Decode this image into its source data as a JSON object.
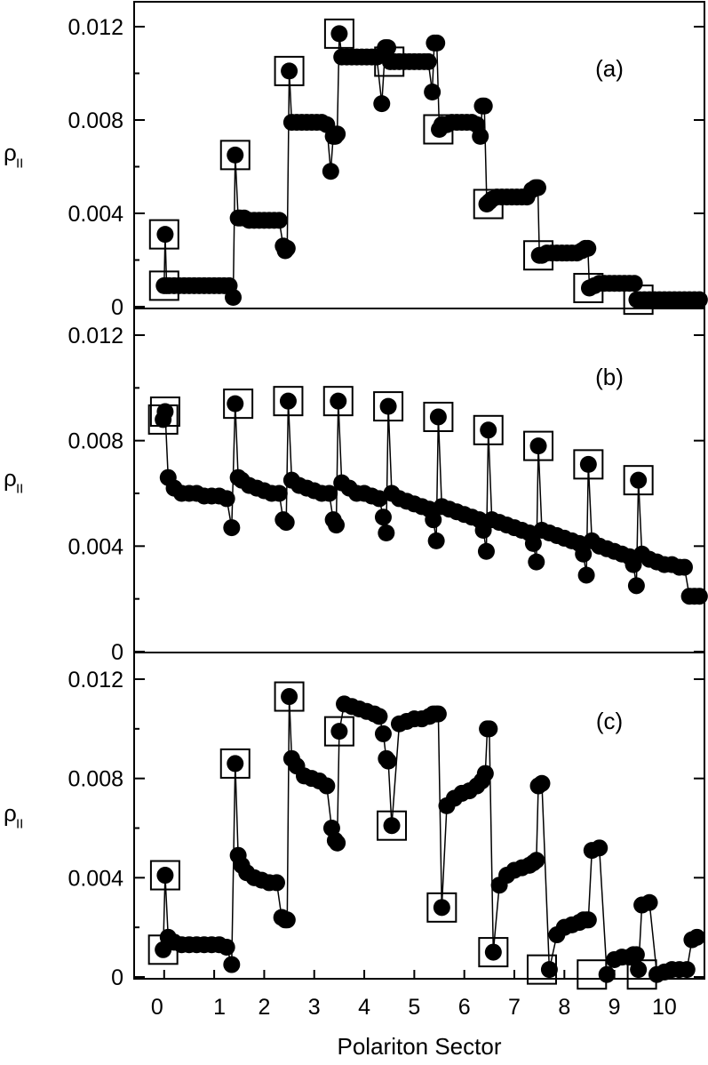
{
  "xlabel": "Polariton Sector",
  "x_tick_labels": [
    "0",
    "1",
    "2",
    "3",
    "4",
    "5",
    "6",
    "7",
    "8",
    "9",
    "10"
  ],
  "chart_data": [
    {
      "type": "line",
      "panel_label": "(a)",
      "ylabel": "ρ",
      "ylabel_subscript": "II",
      "ylim": [
        0,
        0.0125
      ],
      "xlim": [
        -0.6,
        10.8
      ],
      "y_tick_labels": [
        "0",
        "0.004",
        "0.008",
        "0.012"
      ],
      "y_ticks": [
        0,
        0.004,
        0.008,
        0.012
      ],
      "grid": false,
      "series": [
        {
          "x": [
            0.0,
            0.02,
            0.05,
            0.1,
            0.2,
            0.3,
            0.4,
            0.5,
            0.6,
            0.7,
            0.8,
            0.9,
            1.0,
            1.1,
            1.2,
            1.3,
            1.38,
            1.42,
            1.48,
            1.52,
            1.6,
            1.7,
            1.8,
            1.9,
            2.0,
            2.1,
            2.2,
            2.3,
            2.38,
            2.42,
            2.46,
            2.5,
            2.55,
            2.65,
            2.75,
            2.85,
            2.95,
            3.05,
            3.15,
            3.25,
            3.33,
            3.38,
            3.42,
            3.46,
            3.5,
            3.55,
            3.65,
            3.75,
            3.85,
            3.95,
            4.05,
            4.15,
            4.25,
            4.35,
            4.42,
            4.47,
            4.52,
            4.6,
            4.7,
            4.8,
            4.9,
            5.0,
            5.1,
            5.2,
            5.28,
            5.36,
            5.4,
            5.45,
            5.5,
            5.55,
            5.65,
            5.75,
            5.85,
            5.95,
            6.05,
            6.15,
            6.25,
            6.32,
            6.36,
            6.4,
            6.45,
            6.5,
            6.55,
            6.65,
            6.75,
            6.85,
            6.95,
            7.05,
            7.15,
            7.25,
            7.35,
            7.42,
            7.47,
            7.5,
            7.55,
            7.65,
            7.75,
            7.85,
            7.95,
            8.05,
            8.15,
            8.25,
            8.35,
            8.42,
            8.47,
            8.5,
            8.6,
            8.7,
            8.8,
            8.9,
            9.0,
            9.1,
            9.2,
            9.3,
            9.4,
            9.45,
            9.5,
            9.6,
            9.7,
            9.8,
            9.9,
            10.0,
            10.1,
            10.2,
            10.3,
            10.4,
            10.5,
            10.6,
            10.7
          ],
          "y": [
            0.0009,
            0.0031,
            0.0009,
            0.0009,
            0.0009,
            0.0009,
            0.0009,
            0.0009,
            0.0009,
            0.0009,
            0.0009,
            0.0009,
            0.0009,
            0.0009,
            0.0009,
            0.0009,
            0.0004,
            0.0065,
            0.0038,
            0.0038,
            0.0038,
            0.0037,
            0.0037,
            0.0037,
            0.0037,
            0.0037,
            0.0037,
            0.0037,
            0.0026,
            0.0024,
            0.0025,
            0.0101,
            0.0079,
            0.0079,
            0.0079,
            0.0079,
            0.0079,
            0.0079,
            0.0079,
            0.0078,
            0.0058,
            0.0073,
            0.0073,
            0.0074,
            0.0117,
            0.0107,
            0.0107,
            0.0107,
            0.0107,
            0.0107,
            0.0107,
            0.0107,
            0.0107,
            0.0087,
            0.0111,
            0.0111,
            0.0105,
            0.0105,
            0.0105,
            0.0105,
            0.0105,
            0.0105,
            0.0105,
            0.0105,
            0.0105,
            0.0092,
            0.0113,
            0.0113,
            0.0076,
            0.0078,
            0.0078,
            0.0079,
            0.0079,
            0.0079,
            0.0079,
            0.0079,
            0.0078,
            0.0073,
            0.0086,
            0.0086,
            0.0044,
            0.0045,
            0.0046,
            0.0047,
            0.0047,
            0.0047,
            0.0047,
            0.0047,
            0.0047,
            0.0047,
            0.005,
            0.0051,
            0.0051,
            0.0022,
            0.0022,
            0.0023,
            0.0023,
            0.0023,
            0.0023,
            0.0023,
            0.0023,
            0.0023,
            0.0024,
            0.0025,
            0.0025,
            0.0008,
            0.0009,
            0.001,
            0.001,
            0.001,
            0.001,
            0.001,
            0.001,
            0.001,
            0.001,
            0.0003,
            0.0003,
            0.0003,
            0.0003,
            0.0003,
            0.0003,
            0.0003,
            0.0003,
            0.0003,
            0.0003,
            0.0003,
            0.0003,
            0.0003,
            0.0003
          ]
        }
      ],
      "boxed_points": [
        [
          0.0,
          0.0031
        ],
        [
          0.0,
          0.0009
        ],
        [
          1.42,
          0.0065
        ],
        [
          2.5,
          0.0101
        ],
        [
          3.5,
          0.0117
        ],
        [
          4.5,
          0.0105
        ],
        [
          5.48,
          0.0076
        ],
        [
          6.48,
          0.0044
        ],
        [
          7.48,
          0.0022
        ],
        [
          8.48,
          0.0008
        ],
        [
          9.48,
          0.0003
        ]
      ]
    },
    {
      "type": "line",
      "panel_label": "(b)",
      "ylabel": "ρ",
      "ylabel_subscript": "II",
      "ylim": [
        0,
        0.0125
      ],
      "xlim": [
        -0.6,
        10.8
      ],
      "y_tick_labels": [
        "0",
        "0.004",
        "0.008",
        "0.012"
      ],
      "y_ticks": [
        0,
        0.004,
        0.008,
        0.012
      ],
      "grid": false,
      "series": [
        {
          "x": [
            -0.02,
            0.02,
            0.08,
            0.2,
            0.35,
            0.5,
            0.65,
            0.8,
            0.95,
            1.1,
            1.25,
            1.35,
            1.42,
            1.48,
            1.55,
            1.7,
            1.85,
            2.0,
            2.15,
            2.3,
            2.38,
            2.44,
            2.48,
            2.55,
            2.7,
            2.85,
            3.0,
            3.15,
            3.3,
            3.38,
            3.44,
            3.48,
            3.55,
            3.7,
            3.85,
            4.0,
            4.15,
            4.3,
            4.38,
            4.44,
            4.48,
            4.55,
            4.7,
            4.85,
            5.0,
            5.15,
            5.3,
            5.38,
            5.44,
            5.48,
            5.55,
            5.7,
            5.85,
            6.0,
            6.15,
            6.3,
            6.38,
            6.44,
            6.48,
            6.55,
            6.7,
            6.85,
            7.0,
            7.15,
            7.3,
            7.38,
            7.44,
            7.48,
            7.55,
            7.7,
            7.85,
            8.0,
            8.15,
            8.3,
            8.38,
            8.44,
            8.48,
            8.55,
            8.7,
            8.85,
            9.0,
            9.15,
            9.3,
            9.38,
            9.44,
            9.48,
            9.55,
            9.7,
            9.85,
            10.0,
            10.15,
            10.3,
            10.4,
            10.5,
            10.6,
            10.7
          ],
          "y": [
            0.0088,
            0.0091,
            0.0066,
            0.0062,
            0.006,
            0.006,
            0.006,
            0.0059,
            0.0059,
            0.0059,
            0.0058,
            0.0047,
            0.0094,
            0.0066,
            0.0065,
            0.0063,
            0.0062,
            0.0061,
            0.006,
            0.006,
            0.005,
            0.0049,
            0.0095,
            0.0065,
            0.0063,
            0.0062,
            0.0061,
            0.006,
            0.006,
            0.005,
            0.0048,
            0.0095,
            0.0064,
            0.0062,
            0.006,
            0.006,
            0.0059,
            0.0058,
            0.0051,
            0.0045,
            0.0093,
            0.006,
            0.0058,
            0.0057,
            0.0056,
            0.0055,
            0.0054,
            0.005,
            0.0042,
            0.0089,
            0.0055,
            0.0054,
            0.0053,
            0.0052,
            0.0051,
            0.005,
            0.0046,
            0.0038,
            0.0084,
            0.005,
            0.0049,
            0.0048,
            0.0047,
            0.0046,
            0.0045,
            0.0041,
            0.0034,
            0.0078,
            0.0046,
            0.0045,
            0.0044,
            0.0043,
            0.0042,
            0.0041,
            0.0037,
            0.0029,
            0.0071,
            0.0042,
            0.004,
            0.0039,
            0.0038,
            0.0037,
            0.0036,
            0.0033,
            0.0025,
            0.0065,
            0.0037,
            0.0035,
            0.0034,
            0.0033,
            0.0033,
            0.0032,
            0.0032,
            0.0021,
            0.0021,
            0.0021
          ]
        }
      ],
      "boxed_points": [
        [
          -0.02,
          0.0088
        ],
        [
          0.02,
          0.0091
        ],
        [
          1.48,
          0.0094
        ],
        [
          2.48,
          0.0095
        ],
        [
          3.48,
          0.0095
        ],
        [
          4.48,
          0.0093
        ],
        [
          5.48,
          0.0089
        ],
        [
          6.48,
          0.0084
        ],
        [
          7.48,
          0.0078
        ],
        [
          8.48,
          0.0071
        ],
        [
          9.48,
          0.0065
        ]
      ]
    },
    {
      "type": "line",
      "panel_label": "(c)",
      "ylabel": "ρ",
      "ylabel_subscript": "II",
      "ylim": [
        0,
        0.0125
      ],
      "xlim": [
        -0.6,
        10.8
      ],
      "y_tick_labels": [
        "0",
        "0.004",
        "0.008",
        "0.012"
      ],
      "y_ticks": [
        0,
        0.004,
        0.008,
        0.012
      ],
      "grid": false,
      "series": [
        {
          "x": [
            -0.02,
            0.02,
            0.08,
            0.2,
            0.35,
            0.5,
            0.65,
            0.8,
            0.95,
            1.1,
            1.25,
            1.35,
            1.42,
            1.48,
            1.55,
            1.65,
            1.8,
            1.95,
            2.1,
            2.25,
            2.35,
            2.42,
            2.46,
            2.5,
            2.55,
            2.65,
            2.8,
            2.95,
            3.1,
            3.25,
            3.35,
            3.42,
            3.46,
            3.5,
            3.6,
            3.75,
            3.9,
            4.05,
            4.2,
            4.3,
            4.38,
            4.44,
            4.48,
            4.55,
            4.7,
            4.85,
            5.0,
            5.15,
            5.3,
            5.38,
            5.44,
            5.48,
            5.55,
            5.65,
            5.8,
            5.95,
            6.1,
            6.25,
            6.35,
            6.42,
            6.46,
            6.5,
            6.58,
            6.7,
            6.85,
            7.0,
            7.15,
            7.3,
            7.38,
            7.44,
            7.48,
            7.55,
            7.7,
            7.85,
            8.0,
            8.15,
            8.3,
            8.38,
            8.44,
            8.48,
            8.55,
            8.7,
            8.85,
            9.0,
            9.15,
            9.3,
            9.38,
            9.44,
            9.48,
            9.55,
            9.7,
            9.85,
            10.0,
            10.15,
            10.3,
            10.45,
            10.55,
            10.65
          ],
          "y": [
            0.0011,
            0.0041,
            0.0016,
            0.0014,
            0.0013,
            0.0013,
            0.0013,
            0.0013,
            0.0013,
            0.0013,
            0.0012,
            0.0005,
            0.0086,
            0.0049,
            0.0045,
            0.0042,
            0.004,
            0.0039,
            0.0038,
            0.0038,
            0.0024,
            0.0023,
            0.0023,
            0.0113,
            0.0088,
            0.0085,
            0.0081,
            0.008,
            0.0079,
            0.0077,
            0.006,
            0.0055,
            0.0054,
            0.0099,
            0.011,
            0.0109,
            0.0108,
            0.0107,
            0.0106,
            0.0105,
            0.0098,
            0.0088,
            0.0087,
            0.0061,
            0.0102,
            0.0103,
            0.0104,
            0.0104,
            0.0105,
            0.0106,
            0.0106,
            0.0106,
            0.0028,
            0.0069,
            0.0072,
            0.0074,
            0.0075,
            0.0077,
            0.0079,
            0.0082,
            0.01,
            0.01,
            0.001,
            0.0037,
            0.0041,
            0.0043,
            0.0044,
            0.0045,
            0.0046,
            0.0047,
            0.0077,
            0.0078,
            0.0003,
            0.0017,
            0.002,
            0.0021,
            0.0022,
            0.0023,
            0.0023,
            0.0023,
            0.0051,
            0.0052,
            0.0001,
            0.0007,
            0.0008,
            0.0008,
            0.0009,
            0.0009,
            0.0003,
            0.0029,
            0.003,
            0.0001,
            0.0002,
            0.0003,
            0.0003,
            0.0003,
            0.0015,
            0.0016
          ]
        }
      ],
      "boxed_points": [
        [
          -0.02,
          0.0011
        ],
        [
          0.02,
          0.0041
        ],
        [
          1.42,
          0.0086
        ],
        [
          2.5,
          0.0113
        ],
        [
          3.5,
          0.0099
        ],
        [
          4.55,
          0.0061
        ],
        [
          5.55,
          0.0028
        ],
        [
          6.58,
          0.001
        ],
        [
          7.55,
          0.0003
        ],
        [
          8.55,
          0.0001
        ],
        [
          9.55,
          0.0001
        ]
      ]
    }
  ]
}
